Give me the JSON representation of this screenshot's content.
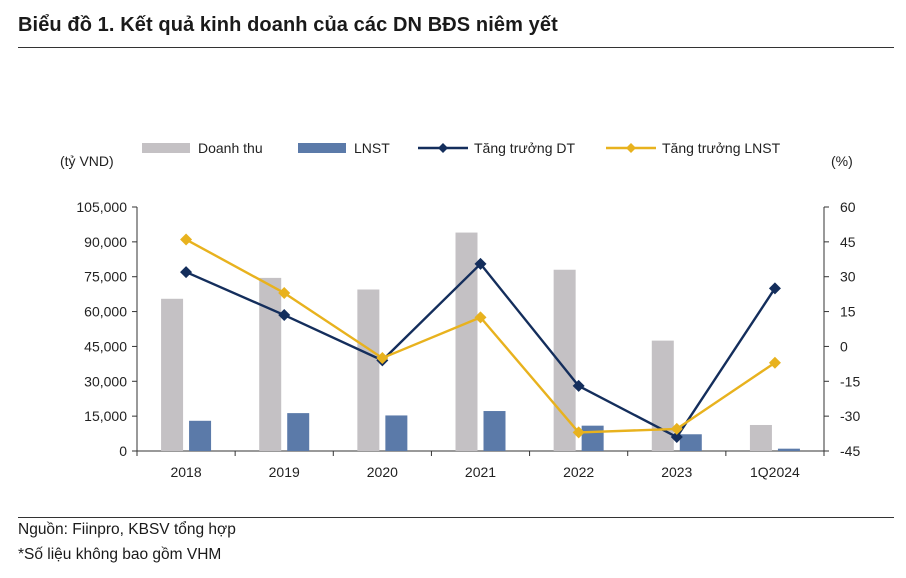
{
  "title": "Biểu đồ 1. Kết quả kinh doanh của các DN BĐS niêm yết",
  "source_note": "Nguồn: Fiinpro, KBSV tổng hợp",
  "footnote": "*Số liệu không bao gồm VHM",
  "chart_data": {
    "type": "bar",
    "y_left_label": "(tỷ VND)",
    "y_right_label": "(%)",
    "y_left_lim": [
      0,
      105000
    ],
    "y_left_ticks": [
      "0",
      "15,000",
      "30,000",
      "45,000",
      "60,000",
      "75,000",
      "90,000",
      "105,000"
    ],
    "y_right_lim": [
      -45,
      60
    ],
    "y_right_ticks": [
      "-45",
      "-30",
      "-15",
      "0",
      "15",
      "30",
      "45",
      "60"
    ],
    "categories": [
      "2018",
      "2019",
      "2020",
      "2021",
      "2022",
      "2023",
      "1Q2024"
    ],
    "legend_position": "top",
    "grid": false,
    "series": [
      {
        "name": "Doanh thu",
        "kind": "bar",
        "axis": "left",
        "color": "#c4c1c4",
        "values": [
          65500,
          74500,
          69500,
          94000,
          78000,
          47500,
          11200
        ]
      },
      {
        "name": "LNST",
        "kind": "bar",
        "axis": "left",
        "color": "#5b7aa9",
        "values": [
          13000,
          16300,
          15300,
          17200,
          10900,
          7200,
          1000
        ]
      },
      {
        "name": "Tăng trưởng DT",
        "kind": "line",
        "axis": "right",
        "color": "#142e5c",
        "values": [
          32,
          13.5,
          -6,
          35.5,
          -17,
          -39,
          25
        ]
      },
      {
        "name": "Tăng trưởng LNST",
        "kind": "line",
        "axis": "right",
        "color": "#e8b21e",
        "values": [
          46,
          23,
          -5,
          12.5,
          -37,
          -35.5,
          -7
        ]
      }
    ]
  }
}
